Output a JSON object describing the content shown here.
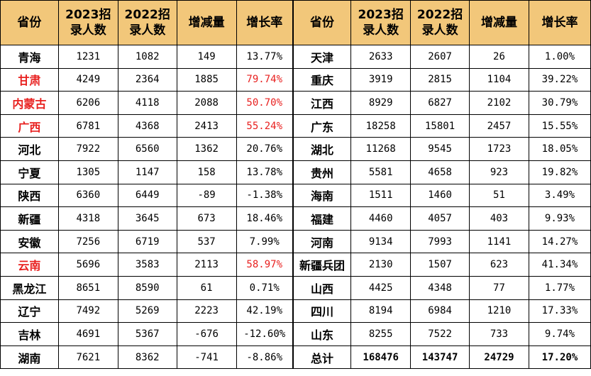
{
  "headers": [
    "省份",
    "2023招录人数",
    "2022招录人数",
    "增减量",
    "增长率"
  ],
  "accent_colors": {
    "header_bg": "#f2c77a",
    "highlight_red": "#e8201f"
  },
  "left_rows": [
    {
      "province": "青海",
      "y2023": "1231",
      "y2022": "1082",
      "change": "149",
      "rate": "13.77%",
      "highlight": false
    },
    {
      "province": "甘肃",
      "y2023": "4249",
      "y2022": "2364",
      "change": "1885",
      "rate": "79.74%",
      "highlight": true
    },
    {
      "province": "内蒙古",
      "y2023": "6206",
      "y2022": "4118",
      "change": "2088",
      "rate": "50.70%",
      "highlight": true
    },
    {
      "province": "广西",
      "y2023": "6781",
      "y2022": "4368",
      "change": "2413",
      "rate": "55.24%",
      "highlight": true
    },
    {
      "province": "河北",
      "y2023": "7922",
      "y2022": "6560",
      "change": "1362",
      "rate": "20.76%",
      "highlight": false
    },
    {
      "province": "宁夏",
      "y2023": "1305",
      "y2022": "1147",
      "change": "158",
      "rate": "13.78%",
      "highlight": false
    },
    {
      "province": "陕西",
      "y2023": "6360",
      "y2022": "6449",
      "change": "-89",
      "rate": "-1.38%",
      "highlight": false
    },
    {
      "province": "新疆",
      "y2023": "4318",
      "y2022": "3645",
      "change": "673",
      "rate": "18.46%",
      "highlight": false
    },
    {
      "province": "安徽",
      "y2023": "7256",
      "y2022": "6719",
      "change": "537",
      "rate": "7.99%",
      "highlight": false
    },
    {
      "province": "云南",
      "y2023": "5696",
      "y2022": "3583",
      "change": "2113",
      "rate": "58.97%",
      "highlight": true
    },
    {
      "province": "黑龙江",
      "y2023": "8651",
      "y2022": "8590",
      "change": "61",
      "rate": "0.71%",
      "highlight": false
    },
    {
      "province": "辽宁",
      "y2023": "7492",
      "y2022": "5269",
      "change": "2223",
      "rate": "42.19%",
      "highlight": false
    },
    {
      "province": "吉林",
      "y2023": "4691",
      "y2022": "5367",
      "change": "-676",
      "rate": "-12.60%",
      "highlight": false
    },
    {
      "province": "湖南",
      "y2023": "7621",
      "y2022": "8362",
      "change": "-741",
      "rate": "-8.86%",
      "highlight": false
    }
  ],
  "right_rows": [
    {
      "province": "天津",
      "y2023": "2633",
      "y2022": "2607",
      "change": "26",
      "rate": "1.00%"
    },
    {
      "province": "重庆",
      "y2023": "3919",
      "y2022": "2815",
      "change": "1104",
      "rate": "39.22%"
    },
    {
      "province": "江西",
      "y2023": "8929",
      "y2022": "6827",
      "change": "2102",
      "rate": "30.79%"
    },
    {
      "province": "广东",
      "y2023": "18258",
      "y2022": "15801",
      "change": "2457",
      "rate": "15.55%"
    },
    {
      "province": "湖北",
      "y2023": "11268",
      "y2022": "9545",
      "change": "1723",
      "rate": "18.05%"
    },
    {
      "province": "贵州",
      "y2023": "5581",
      "y2022": "4658",
      "change": "923",
      "rate": "19.82%"
    },
    {
      "province": "海南",
      "y2023": "1511",
      "y2022": "1460",
      "change": "51",
      "rate": "3.49%"
    },
    {
      "province": "福建",
      "y2023": "4460",
      "y2022": "4057",
      "change": "403",
      "rate": "9.93%"
    },
    {
      "province": "河南",
      "y2023": "9134",
      "y2022": "7993",
      "change": "1141",
      "rate": "14.27%"
    },
    {
      "province": "新疆兵团",
      "y2023": "2130",
      "y2022": "1507",
      "change": "623",
      "rate": "41.34%"
    },
    {
      "province": "山西",
      "y2023": "4425",
      "y2022": "4348",
      "change": "77",
      "rate": "1.77%"
    },
    {
      "province": "四川",
      "y2023": "8194",
      "y2022": "6984",
      "change": "1210",
      "rate": "17.33%"
    },
    {
      "province": "山东",
      "y2023": "8255",
      "y2022": "7522",
      "change": "733",
      "rate": "9.74%"
    },
    {
      "province": "总计",
      "y2023": "168476",
      "y2022": "143747",
      "change": "24729",
      "rate": "17.20%",
      "total": true
    }
  ]
}
